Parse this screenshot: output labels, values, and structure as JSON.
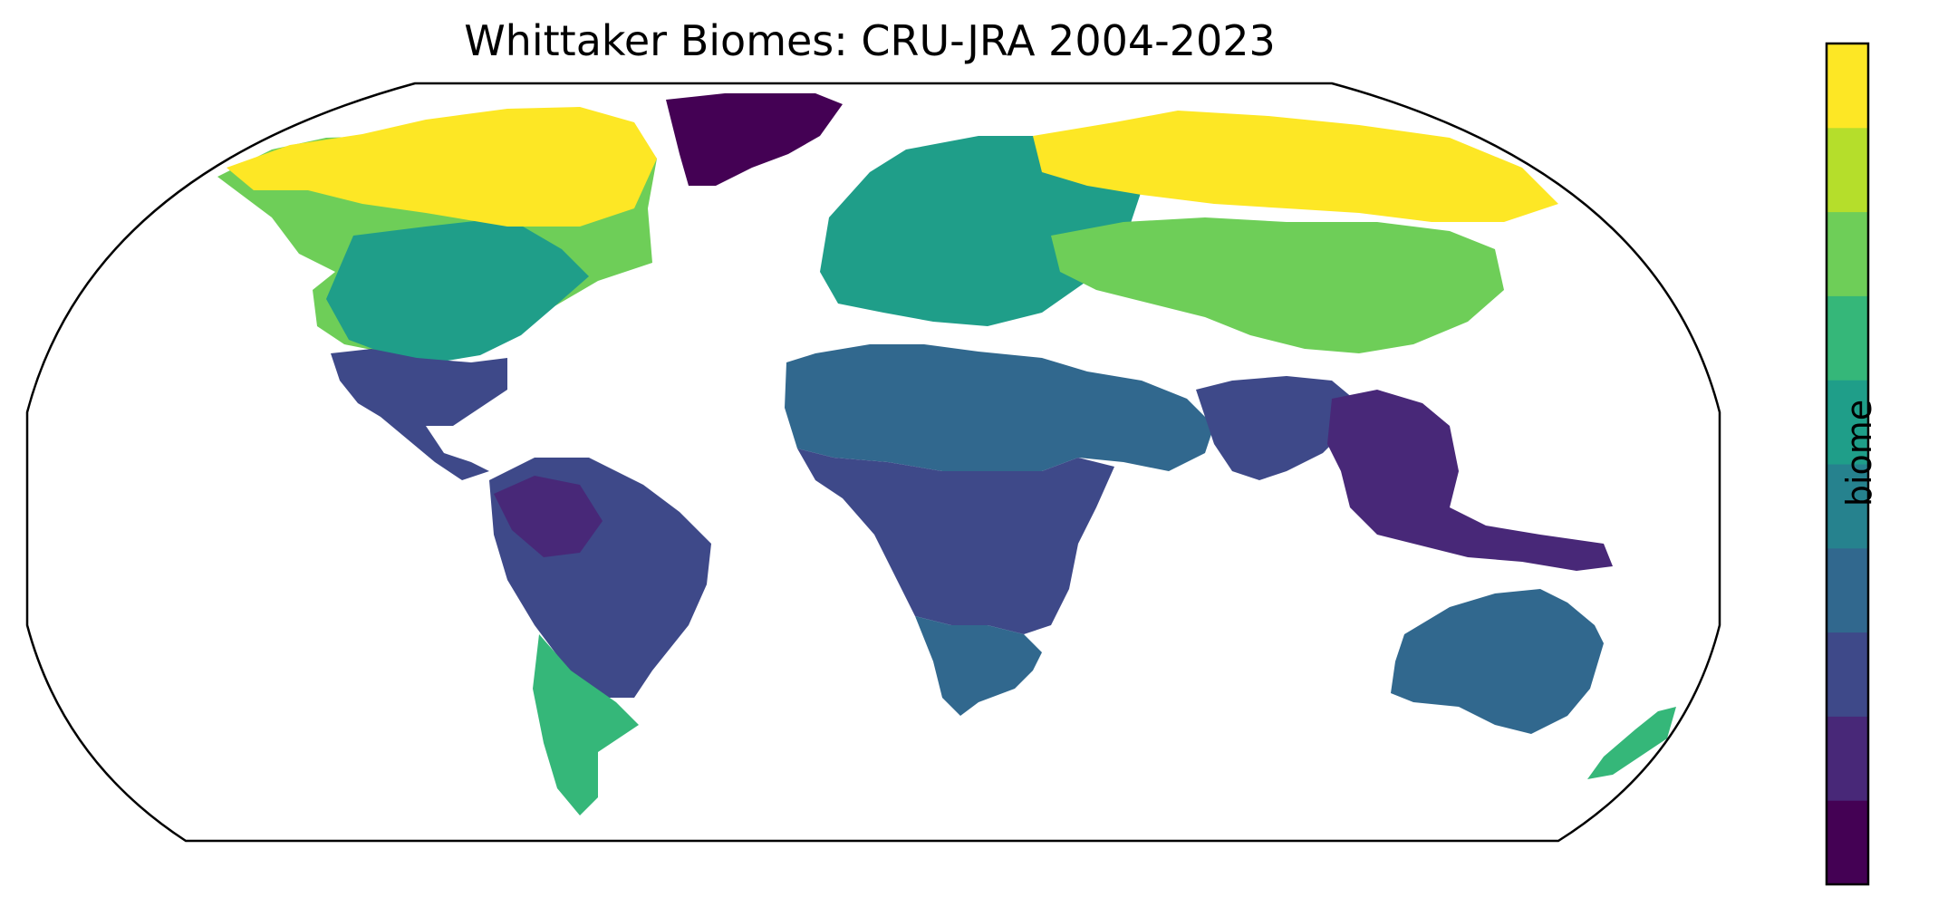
{
  "title": "Whittaker Biomes: CRU-JRA 2004-2023",
  "colorbar": {
    "label": "biome",
    "colors": [
      "#440154",
      "#482878",
      "#3e4989",
      "#31688e",
      "#26828e",
      "#1f9e89",
      "#35b779",
      "#6ece58",
      "#b5de2b",
      "#fde725"
    ]
  },
  "map": {
    "projection": "Robinson",
    "variable": "biome",
    "ocean_color": "#ffffff",
    "outline_color": "#000000",
    "regions": [
      {
        "name": "north-america-boreal",
        "class_index": 7
      },
      {
        "name": "north-america-temperate",
        "class_index": 5
      },
      {
        "name": "arctic-tundra",
        "class_index": 9
      },
      {
        "name": "greenland",
        "class_index": 0
      },
      {
        "name": "central-america",
        "class_index": 2
      },
      {
        "name": "amazon",
        "class_index": 2
      },
      {
        "name": "andes",
        "class_index": 1
      },
      {
        "name": "patagonia",
        "class_index": 6
      },
      {
        "name": "europe",
        "class_index": 5
      },
      {
        "name": "siberia-tundra",
        "class_index": 9
      },
      {
        "name": "central-asia",
        "class_index": 7
      },
      {
        "name": "sahara-arabia",
        "class_index": 3
      },
      {
        "name": "sub-saharan-africa",
        "class_index": 2
      },
      {
        "name": "southern-africa",
        "class_index": 3
      },
      {
        "name": "south-asia",
        "class_index": 2
      },
      {
        "name": "southeast-asia",
        "class_index": 1
      },
      {
        "name": "australia",
        "class_index": 3
      },
      {
        "name": "new-zealand",
        "class_index": 6
      }
    ]
  }
}
